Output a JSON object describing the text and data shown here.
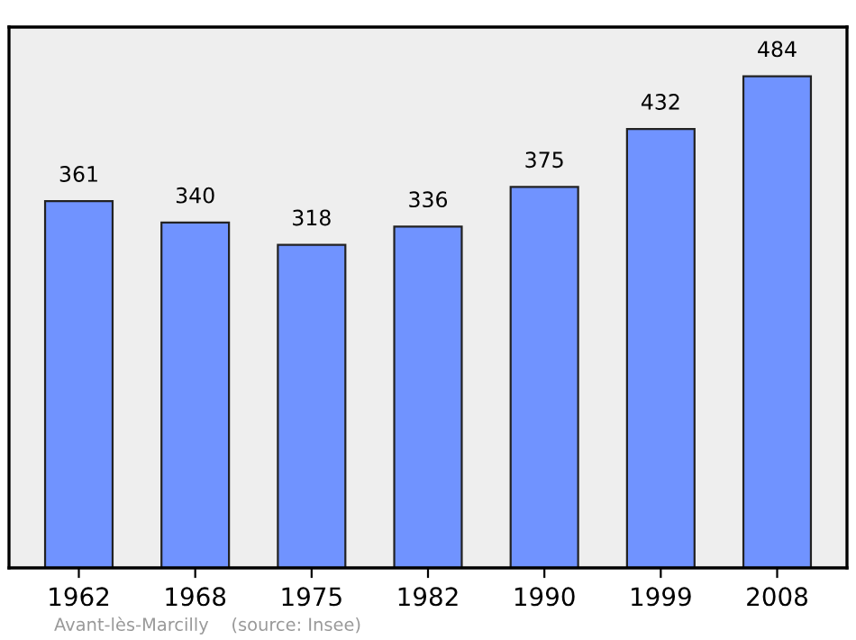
{
  "chart_data": {
    "type": "bar",
    "categories": [
      "1962",
      "1968",
      "1975",
      "1982",
      "1990",
      "1999",
      "2008"
    ],
    "values": [
      361,
      340,
      318,
      336,
      375,
      432,
      484
    ],
    "color": "#7093ff",
    "data_labels": true,
    "grid": false,
    "annotations": [
      "Avant-lès-Marcilly    (source: Insee)"
    ]
  }
}
